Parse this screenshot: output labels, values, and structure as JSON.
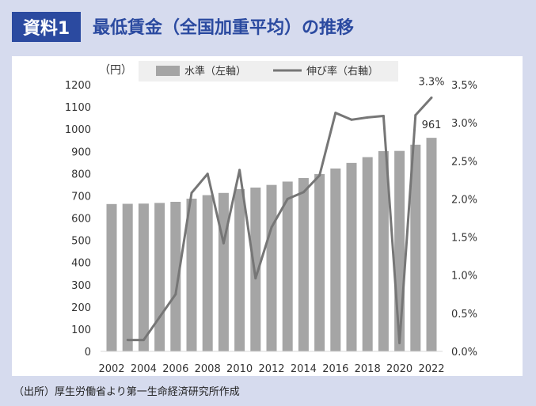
{
  "header": {
    "badge": "資料1",
    "title": "最低賃金（全国加重平均）の推移"
  },
  "source": "（出所）厚生労働省より第一生命経済研究所作成",
  "colors": {
    "bar": "#a5a5a5",
    "line": "#767676",
    "accent": "#2b4aa0"
  },
  "chart_data": {
    "type": "bar+line",
    "unit_label": "（円）",
    "categories": [
      2002,
      2003,
      2004,
      2005,
      2006,
      2007,
      2008,
      2009,
      2010,
      2011,
      2012,
      2013,
      2014,
      2015,
      2016,
      2017,
      2018,
      2019,
      2020,
      2021,
      2022
    ],
    "x_tick_labels": [
      "2002",
      "2004",
      "2006",
      "2008",
      "2010",
      "2012",
      "2014",
      "2016",
      "2018",
      "2020",
      "2022"
    ],
    "series": [
      {
        "name": "水準（左軸）",
        "type": "bar",
        "axis": "left",
        "values": [
          663,
          664,
          665,
          668,
          673,
          687,
          703,
          713,
          730,
          737,
          749,
          764,
          780,
          798,
          823,
          848,
          874,
          901,
          902,
          930,
          961
        ]
      },
      {
        "name": "伸び率（右軸）",
        "type": "line",
        "axis": "right",
        "values": [
          null,
          0.15,
          0.15,
          0.45,
          0.75,
          2.08,
          2.33,
          1.42,
          2.38,
          0.96,
          1.63,
          2.0,
          2.09,
          2.31,
          3.13,
          3.04,
          3.07,
          3.09,
          0.11,
          3.1,
          3.33
        ]
      }
    ],
    "left_axis": {
      "min": 0,
      "max": 1200,
      "step": 100,
      "tick_labels": [
        "0",
        "100",
        "200",
        "300",
        "400",
        "500",
        "600",
        "700",
        "800",
        "900",
        "1000",
        "1100",
        "1200"
      ]
    },
    "right_axis": {
      "min": 0,
      "max": 3.5,
      "step": 0.5,
      "tick_labels": [
        "0.0%",
        "0.5%",
        "1.0%",
        "1.5%",
        "2.0%",
        "2.5%",
        "3.0%",
        "3.5%"
      ]
    },
    "annotations": {
      "last_bar_label": "961",
      "last_line_label": "3.3%"
    }
  }
}
